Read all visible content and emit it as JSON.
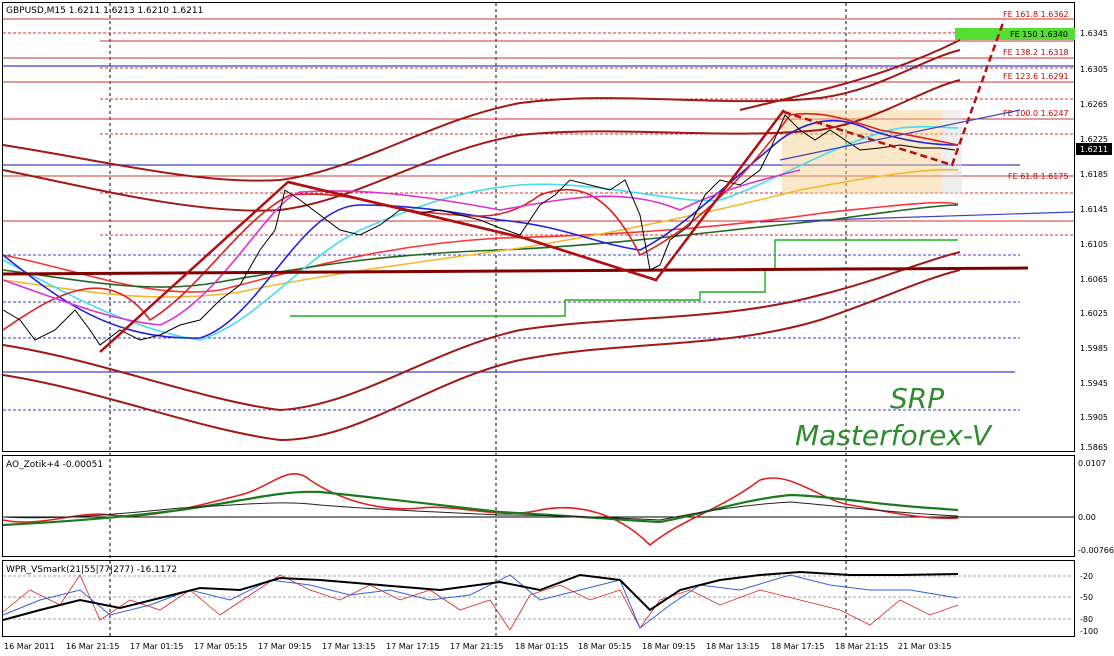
{
  "header": {
    "symbol_line": "GBPUSD,M15  1.6211 1.6213 1.6210 1.6211",
    "ao_label": "AO_Zotik+4 -0.00051",
    "wpr_label": "WPR_VSmark(21|55|77|277) -16.1172"
  },
  "price_axis": {
    "labels": [
      "1.6345",
      "1.6305",
      "1.6265",
      "1.6225",
      "1.6185",
      "1.6145",
      "1.6105",
      "1.6065",
      "1.6025",
      "1.5985",
      "1.5945",
      "1.5905",
      "1.5865"
    ],
    "current": "1.6211"
  },
  "ao_axis": {
    "labels": [
      "0.0107",
      "0.00",
      "-0.00766"
    ]
  },
  "wpr_axis": {
    "labels": [
      "-20",
      "-50",
      "-80",
      "-100"
    ]
  },
  "time_axis": {
    "labels": [
      "16 Mar 2011",
      "16 Mar 21:15",
      "17 Mar 01:15",
      "17 Mar 05:15",
      "17 Mar 09:15",
      "17 Mar 13:15",
      "17 Mar 17:15",
      "17 Mar 21:15",
      "18 Mar 01:15",
      "18 Mar 05:15",
      "18 Mar 09:15",
      "18 Mar 13:15",
      "18 Mar 17:15",
      "18 Mar 21:15",
      "21 Mar 03:15"
    ]
  },
  "fib_levels": [
    {
      "label": "FE 161.8  1.6362"
    },
    {
      "label": "FE 150  1.6340"
    },
    {
      "label": "FE 138.2  1.6318"
    },
    {
      "label": "FE 123.6  1.6291"
    },
    {
      "label": "FE 100.0  1.6247"
    },
    {
      "label": "FE 61.8  1.6175"
    }
  ],
  "watermark": {
    "line1": "SRP",
    "line2": "Masterforex-V"
  },
  "colors": {
    "fib": "#cc0000",
    "zigzag": "#b01010",
    "watermark": "#2e8b2e",
    "fe150_box": "#55dd33"
  }
}
